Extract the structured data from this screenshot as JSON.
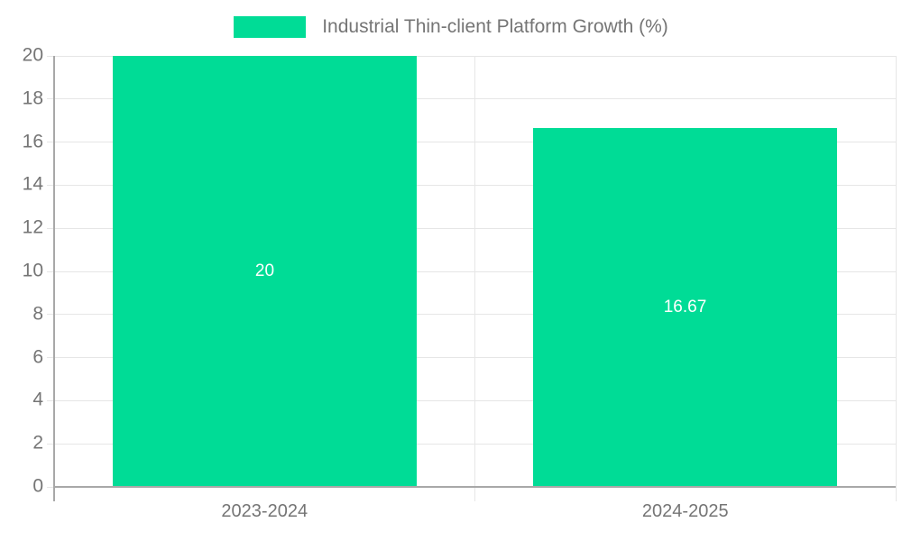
{
  "chart_data": {
    "type": "bar",
    "title": "Industrial Thin-client Platform Growth (%)",
    "categories": [
      "2023-2024",
      "2024-2025"
    ],
    "values": [
      20,
      16.67
    ],
    "value_labels": [
      "20",
      "16.67"
    ],
    "xlabel": "",
    "ylabel": "",
    "ylim": [
      0,
      20
    ],
    "ytick_step": 2,
    "ytick_labels": [
      "0",
      "2",
      "4",
      "6",
      "8",
      "10",
      "12",
      "14",
      "16",
      "18",
      "20"
    ],
    "legend_position": "top-center",
    "grid": {
      "horizontal": true,
      "vertical_category_separators": true
    },
    "bar_label_position": "center-inside",
    "colors": {
      "bar": "#00DC96",
      "bar_label": "#ffffff",
      "text": "#757575",
      "gridline": "#e6e6e6",
      "axis": "#a8a8a8",
      "background": "#ffffff"
    }
  }
}
